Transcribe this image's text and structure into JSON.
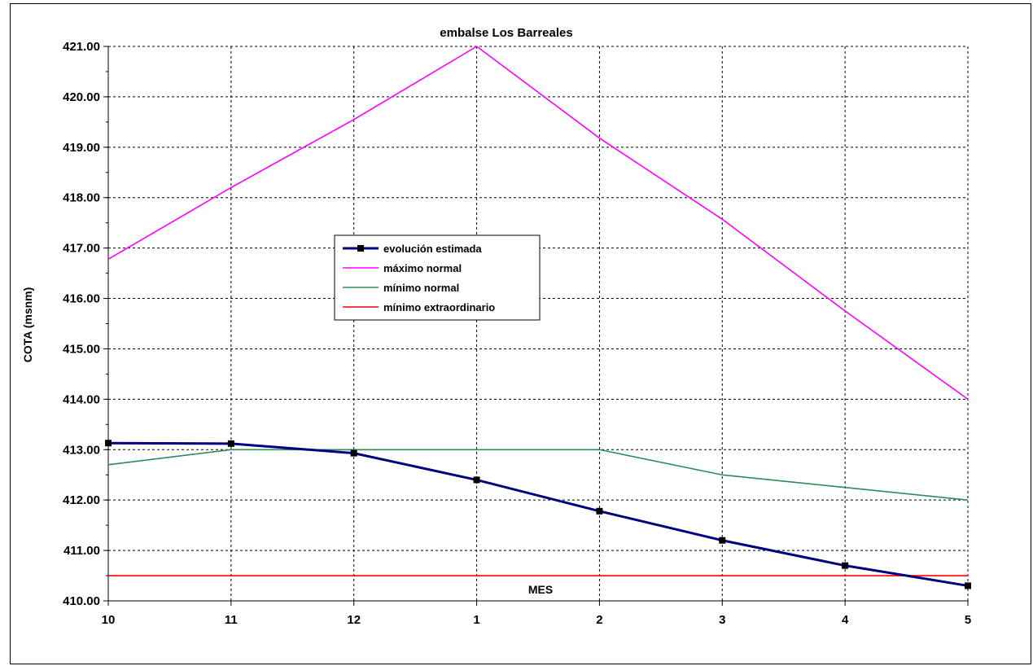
{
  "chart_data": {
    "type": "line",
    "title": "embalse Los Barreales",
    "xlabel": "MES",
    "ylabel": "COTA (msnm)",
    "categories": [
      "10",
      "11",
      "12",
      "1",
      "2",
      "3",
      "4",
      "5"
    ],
    "ylim": [
      410,
      421
    ],
    "ytick_step": 1,
    "ytick_labels": [
      "410.00",
      "411.00",
      "412.00",
      "413.00",
      "414.00",
      "415.00",
      "416.00",
      "417.00",
      "418.00",
      "419.00",
      "420.00",
      "421.00"
    ],
    "grid": true,
    "legend_position": "center-left",
    "series": [
      {
        "name": "evolución estimada",
        "color": "#000080",
        "markers": true,
        "values": [
          413.13,
          413.12,
          412.93,
          412.4,
          411.78,
          411.2,
          410.7,
          410.3
        ]
      },
      {
        "name": "máximo normal",
        "color": "#ff00ff",
        "markers": false,
        "values": [
          416.78,
          418.2,
          419.55,
          421.0,
          419.18,
          417.57,
          415.75,
          414.0
        ]
      },
      {
        "name": "mínimo normal",
        "color": "#2e8b57",
        "markers": false,
        "values": [
          412.7,
          413.0,
          413.0,
          413.0,
          413.0,
          412.5,
          412.25,
          412.0
        ]
      },
      {
        "name": "mínimo extraordinario",
        "color": "#ff0000",
        "markers": false,
        "values": [
          410.5,
          410.5,
          410.5,
          410.5,
          410.5,
          410.5,
          410.5,
          410.5
        ]
      }
    ]
  }
}
